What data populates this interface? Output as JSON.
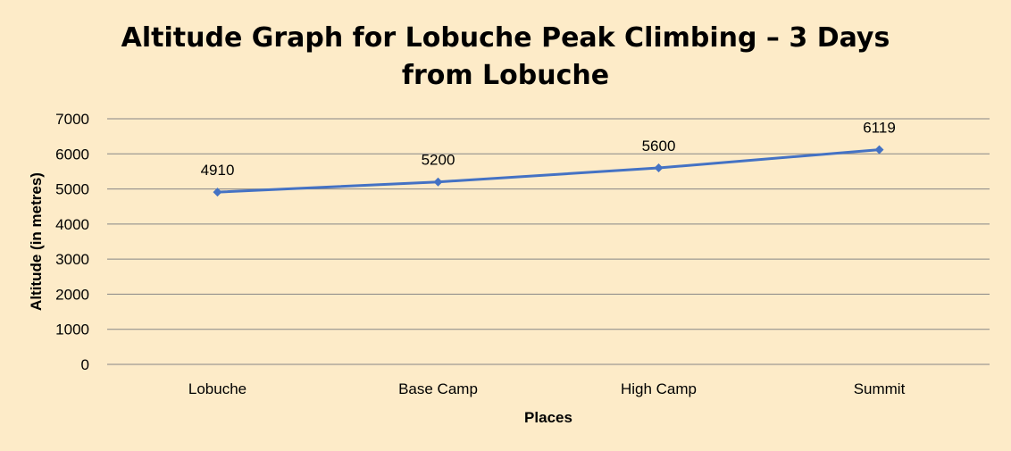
{
  "chart_data": {
    "type": "line",
    "title_line1": "Altitude Graph for Lobuche Peak Climbing – 3 Days",
    "title_line2": "from Lobuche",
    "xlabel": "Places",
    "ylabel": "Altitude (in metres)",
    "categories": [
      "Lobuche",
      "Base Camp",
      "High Camp",
      "Summit"
    ],
    "series": [
      {
        "values": [
          4910,
          5200,
          5600,
          6119
        ],
        "color": "#4472c4"
      }
    ],
    "ylim": [
      0,
      7000
    ],
    "yticks": [
      0,
      1000,
      2000,
      3000,
      4000,
      5000,
      6000,
      7000
    ],
    "grid": true,
    "data_labels": true,
    "marker": "diamond",
    "background": "#fdebc8"
  }
}
